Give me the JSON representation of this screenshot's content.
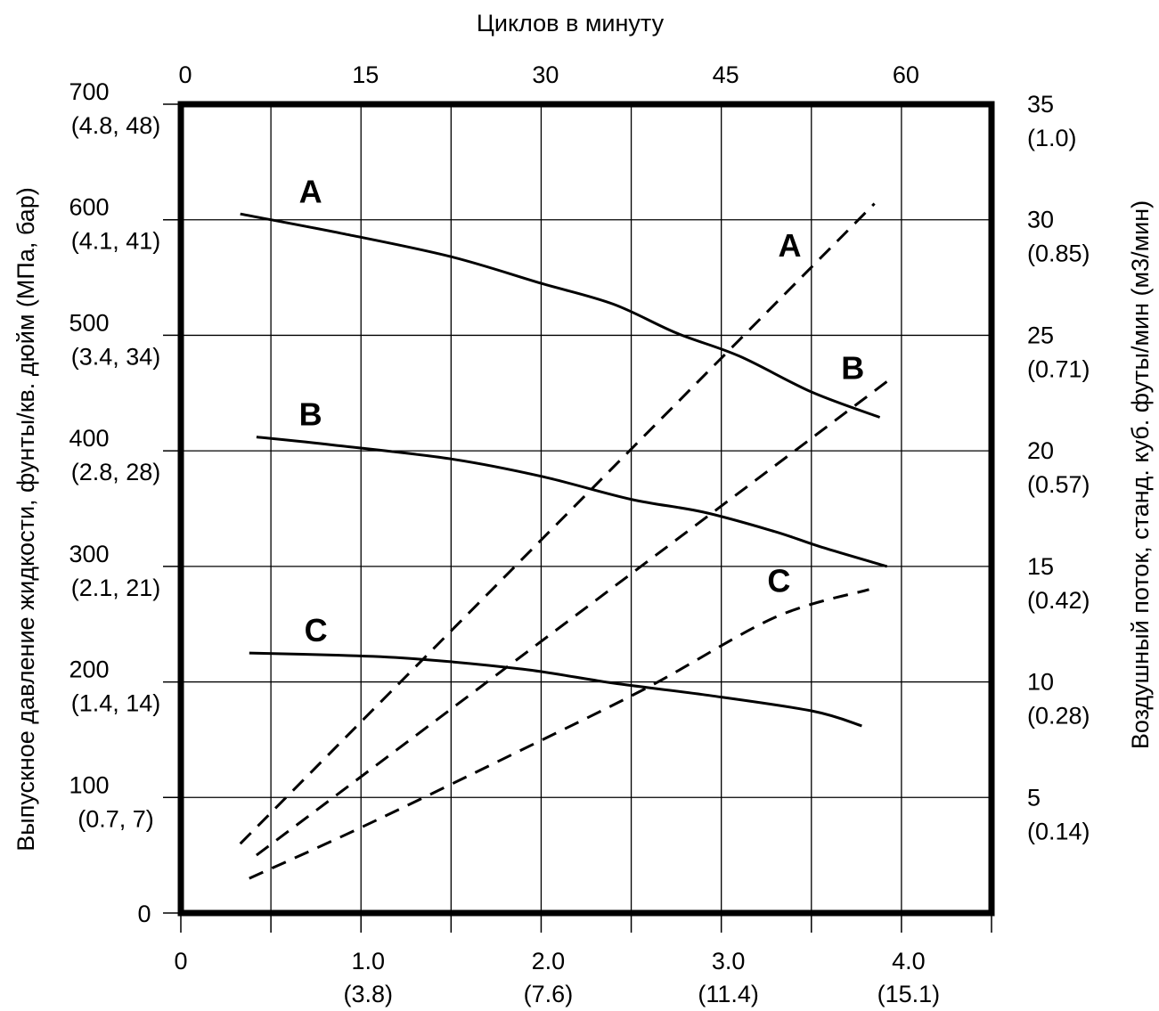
{
  "chart_data": {
    "type": "line",
    "title": "",
    "top_axis": {
      "label": "Циклов в минуту",
      "ticks": [
        "0",
        "15",
        "30",
        "45",
        "60"
      ],
      "values": [
        0,
        15,
        30,
        45,
        60
      ]
    },
    "bottom_axis": {
      "label": "",
      "ticks": [
        {
          "line1": "0",
          "line2": "",
          "value": 0
        },
        {
          "line1": "1.0",
          "line2": "(3.8)",
          "value": 1.0
        },
        {
          "line1": "2.0",
          "line2": "(7.6)",
          "value": 2.0
        },
        {
          "line1": "3.0",
          "line2": "(11.4)",
          "value": 3.0
        },
        {
          "line1": "4.0",
          "line2": "(15.1)",
          "value": 4.0
        }
      ],
      "range": [
        0,
        4.5
      ]
    },
    "left_axis": {
      "label": "Выпускное давление жидкости, фунты/кв. дюйм (МПа, бар)",
      "ticks": [
        {
          "line1": "0",
          "line2": "",
          "value": 0
        },
        {
          "line1": "100",
          "line2": "(0.7, 7)",
          "value": 100
        },
        {
          "line1": "200",
          "line2": "(1.4, 14)",
          "value": 200
        },
        {
          "line1": "300",
          "line2": "(2.1, 21)",
          "value": 300
        },
        {
          "line1": "400",
          "line2": "(2.8, 28)",
          "value": 400
        },
        {
          "line1": "500",
          "line2": "(3.4, 34)",
          "value": 500
        },
        {
          "line1": "600",
          "line2": "(4.1, 41)",
          "value": 600
        },
        {
          "line1": "700",
          "line2": "(4.8, 48)",
          "value": 700
        }
      ],
      "range": [
        0,
        700
      ]
    },
    "right_axis": {
      "label": "Воздушный поток, станд. куб. футы/мин (м3/мин)",
      "ticks": [
        {
          "line1": "5",
          "line2": "(0.14)",
          "value": 5
        },
        {
          "line1": "10",
          "line2": "(0.28)",
          "value": 10
        },
        {
          "line1": "15",
          "line2": "(0.42)",
          "value": 15
        },
        {
          "line1": "20",
          "line2": "(0.57)",
          "value": 20
        },
        {
          "line1": "25",
          "line2": "(0.71)",
          "value": 25
        },
        {
          "line1": "30",
          "line2": "(0.85)",
          "value": 30
        },
        {
          "line1": "35",
          "line2": "(1.0)",
          "value": 35
        }
      ],
      "range": [
        0,
        35
      ]
    },
    "grid": true,
    "series": [
      {
        "name": "A",
        "style": "solid",
        "axis": "left",
        "x": [
          0.33,
          0.9,
          1.5,
          2.0,
          2.4,
          2.75,
          3.1,
          3.5,
          3.88
        ],
        "y": [
          605,
          588,
          568,
          545,
          527,
          502,
          482,
          451,
          429
        ]
      },
      {
        "name": "B",
        "style": "solid",
        "axis": "left",
        "x": [
          0.42,
          0.85,
          1.5,
          2.0,
          2.5,
          2.9,
          3.3,
          3.55,
          3.92
        ],
        "y": [
          412,
          405,
          393,
          378,
          358,
          347,
          330,
          317,
          300
        ]
      },
      {
        "name": "C",
        "style": "solid",
        "axis": "left",
        "x": [
          0.38,
          0.9,
          1.3,
          1.9,
          2.4,
          2.9,
          3.5,
          3.78
        ],
        "y": [
          225,
          223,
          220,
          211,
          199,
          189,
          175,
          162
        ]
      },
      {
        "name": "A",
        "style": "dashed",
        "axis": "right",
        "x": [
          0.33,
          3.85
        ],
        "y": [
          3.0,
          30.7
        ]
      },
      {
        "name": "B",
        "style": "dashed",
        "axis": "right",
        "x": [
          0.42,
          3.92
        ],
        "y": [
          2.5,
          23.0
        ]
      },
      {
        "name": "C",
        "style": "dashed",
        "axis": "right",
        "x": [
          0.38,
          1.0,
          1.85,
          2.6,
          3.3,
          3.82
        ],
        "y": [
          1.5,
          3.7,
          6.9,
          9.8,
          12.8,
          14.0
        ]
      }
    ],
    "curve_labels": [
      {
        "text": "A",
        "anchor_x": 0.72,
        "anchor_y": 615,
        "axis": "left"
      },
      {
        "text": "B",
        "anchor_x": 0.72,
        "anchor_y": 422,
        "axis": "left"
      },
      {
        "text": "C",
        "anchor_x": 0.75,
        "anchor_y": 235,
        "axis": "left"
      },
      {
        "text": "A",
        "anchor_x": 3.38,
        "anchor_y": 28.4,
        "axis": "right"
      },
      {
        "text": "B",
        "anchor_x": 3.73,
        "anchor_y": 23.1,
        "axis": "right"
      },
      {
        "text": "C",
        "anchor_x": 3.32,
        "anchor_y": 13.9,
        "axis": "right"
      }
    ]
  }
}
